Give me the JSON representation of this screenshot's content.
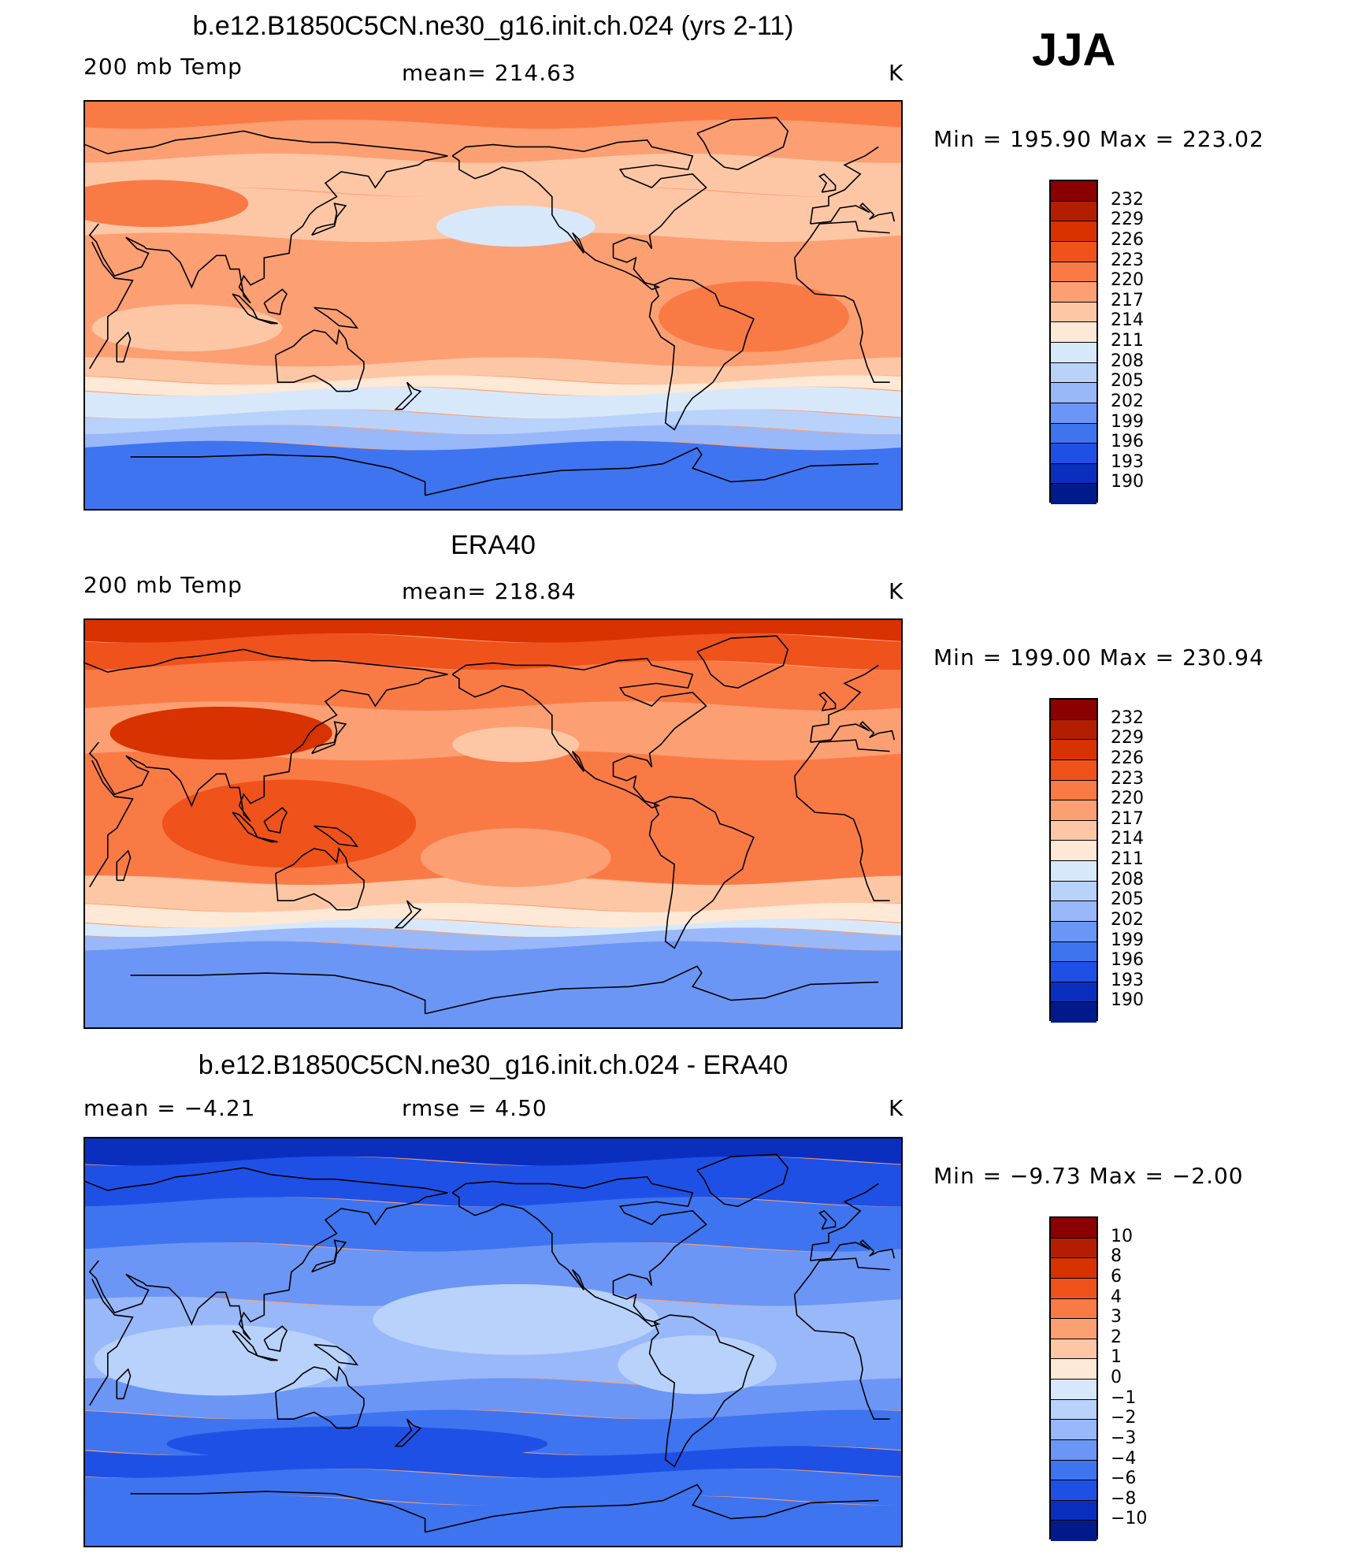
{
  "season": "JJA",
  "panels": [
    {
      "title": "b.e12.B1850C5CN.ne30_g16.init.ch.024 (yrs 2-11)",
      "left_label": "200 mb Temp",
      "center_label": "mean= 214.63",
      "units": "K",
      "minmax": "Min = 195.90 Max = 223.02",
      "colorbar": {
        "levels": [
          "232",
          "229",
          "226",
          "223",
          "220",
          "217",
          "214",
          "211",
          "208",
          "205",
          "202",
          "199",
          "196",
          "193",
          "190"
        ],
        "colors": [
          "#8B0000",
          "#B31E00",
          "#D83200",
          "#F0521C",
          "#FA7A45",
          "#FC9F72",
          "#FDC7A6",
          "#FEE8D6",
          "#D8E8FB",
          "#B8D2FB",
          "#98B8FA",
          "#6B96F5",
          "#3E74F0",
          "#1F50E6",
          "#0A2FBF",
          "#001A8C"
        ],
        "mode": "absolute"
      },
      "map_style": "model"
    },
    {
      "title": "ERA40",
      "left_label": "200 mb Temp",
      "center_label": "mean= 218.84",
      "units": "K",
      "minmax": "Min = 199.00 Max = 230.94",
      "colorbar": {
        "levels": [
          "232",
          "229",
          "226",
          "223",
          "220",
          "217",
          "214",
          "211",
          "208",
          "205",
          "202",
          "199",
          "196",
          "193",
          "190"
        ],
        "colors": [
          "#8B0000",
          "#B31E00",
          "#D83200",
          "#F0521C",
          "#FA7A45",
          "#FC9F72",
          "#FDC7A6",
          "#FEE8D6",
          "#D8E8FB",
          "#B8D2FB",
          "#98B8FA",
          "#6B96F5",
          "#3E74F0",
          "#1F50E6",
          "#0A2FBF",
          "#001A8C"
        ],
        "mode": "absolute"
      },
      "map_style": "obs"
    },
    {
      "title": "b.e12.B1850C5CN.ne30_g16.init.ch.024 - ERA40",
      "left_label": "mean =   −4.21",
      "center_label": "rmse =    4.50",
      "units": "K",
      "minmax": "Min =   −9.73 Max =   −2.00",
      "colorbar": {
        "levels": [
          "10",
          "8",
          "6",
          "4",
          "3",
          "2",
          "1",
          "0",
          "−1",
          "−2",
          "−3",
          "−4",
          "−6",
          "−8",
          "−10"
        ],
        "colors": [
          "#8B0000",
          "#B31E00",
          "#D83200",
          "#F0521C",
          "#FA7A45",
          "#FC9F72",
          "#FDC7A6",
          "#FEE8D6",
          "#D8E8FB",
          "#B8D2FB",
          "#98B8FA",
          "#6B96F5",
          "#3E74F0",
          "#1F50E6",
          "#0A2FBF",
          "#001A8C"
        ],
        "mode": "difference"
      },
      "map_style": "diff"
    }
  ]
}
